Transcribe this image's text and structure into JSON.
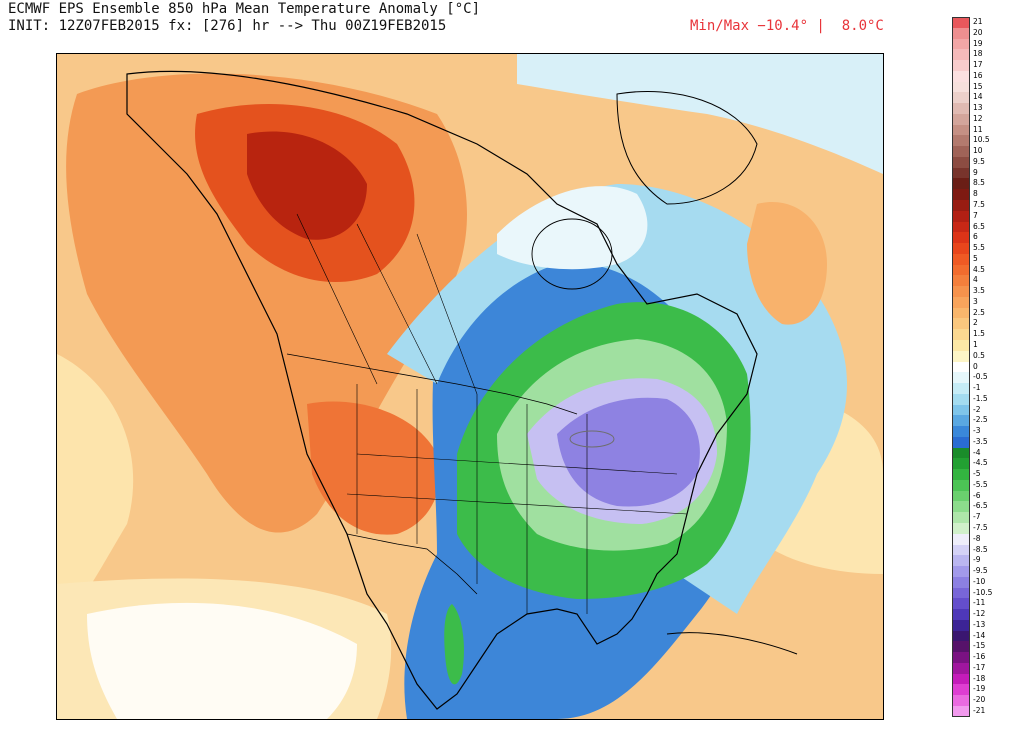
{
  "header": {
    "title_line1": "ECMWF EPS Ensemble 850 hPa Mean Temperature Anomaly [°C]",
    "title_line2": "INIT: 12Z07FEB2015 fx: [276] hr --> Thu 00Z19FEB2015",
    "min_max": "Min/Max −10.4° |  8.0°C"
  },
  "colorbar": {
    "unit": "°C",
    "levels": [
      {
        "label": "21",
        "color": "#e8585c"
      },
      {
        "label": "20",
        "color": "#ee8f90"
      },
      {
        "label": "19",
        "color": "#f2a6a6"
      },
      {
        "label": "18",
        "color": "#f5baba"
      },
      {
        "label": "17",
        "color": "#f8cdcd"
      },
      {
        "label": "16",
        "color": "#fbe0e0"
      },
      {
        "label": "15",
        "color": "#f6e0dc"
      },
      {
        "label": "14",
        "color": "#ecd0ca"
      },
      {
        "label": "13",
        "color": "#e0bab2"
      },
      {
        "label": "12",
        "color": "#d3a59b"
      },
      {
        "label": "11",
        "color": "#c59084"
      },
      {
        "label": "10.5",
        "color": "#b37a6e"
      },
      {
        "label": "10",
        "color": "#a06358"
      },
      {
        "label": "9.5",
        "color": "#8c4c42"
      },
      {
        "label": "9",
        "color": "#78342c"
      },
      {
        "label": "8.5",
        "color": "#6a1e16"
      },
      {
        "label": "8",
        "color": "#7e1a12"
      },
      {
        "label": "7.5",
        "color": "#981c12"
      },
      {
        "label": "7",
        "color": "#b22014"
      },
      {
        "label": "6.5",
        "color": "#c82816"
      },
      {
        "label": "6",
        "color": "#dc3418"
      },
      {
        "label": "5.5",
        "color": "#e8461c"
      },
      {
        "label": "5",
        "color": "#ef5a24"
      },
      {
        "label": "4.5",
        "color": "#f26c2e"
      },
      {
        "label": "4",
        "color": "#f47f3c"
      },
      {
        "label": "3.5",
        "color": "#f6924c"
      },
      {
        "label": "3",
        "color": "#f8a45c"
      },
      {
        "label": "2.5",
        "color": "#f9b66c"
      },
      {
        "label": "2",
        "color": "#fac77e"
      },
      {
        "label": "1.5",
        "color": "#fbd891"
      },
      {
        "label": "1",
        "color": "#fce8a6"
      },
      {
        "label": "0.5",
        "color": "#fdf5c6"
      },
      {
        "label": "0",
        "color": "#ffffff"
      },
      {
        "label": "-0.5",
        "color": "#e6f7fb"
      },
      {
        "label": "-1",
        "color": "#c6ecf6"
      },
      {
        "label": "-1.5",
        "color": "#a4dcf0"
      },
      {
        "label": "-2",
        "color": "#7fc5ea"
      },
      {
        "label": "-2.5",
        "color": "#5aa8e2"
      },
      {
        "label": "-3",
        "color": "#3a88da"
      },
      {
        "label": "-3.5",
        "color": "#2a6cd2"
      },
      {
        "label": "-4",
        "color": "#1a8c2a"
      },
      {
        "label": "-4.5",
        "color": "#22a032"
      },
      {
        "label": "-5",
        "color": "#33b440"
      },
      {
        "label": "-5.5",
        "color": "#4cc455"
      },
      {
        "label": "-6",
        "color": "#6ad06e"
      },
      {
        "label": "-6.5",
        "color": "#8cdc8c"
      },
      {
        "label": "-7",
        "color": "#aee6aa"
      },
      {
        "label": "-7.5",
        "color": "#d0f0ca"
      },
      {
        "label": "-8",
        "color": "#eeeefa"
      },
      {
        "label": "-8.5",
        "color": "#d4d2f6"
      },
      {
        "label": "-9",
        "color": "#bab6f0"
      },
      {
        "label": "-9.5",
        "color": "#a29aea"
      },
      {
        "label": "-10",
        "color": "#8c80e2"
      },
      {
        "label": "-10.5",
        "color": "#7866d8"
      },
      {
        "label": "-11",
        "color": "#644ecc"
      },
      {
        "label": "-12",
        "color": "#4e38b8"
      },
      {
        "label": "-13",
        "color": "#3c2496"
      },
      {
        "label": "-14",
        "color": "#3a1670"
      },
      {
        "label": "-15",
        "color": "#56126a"
      },
      {
        "label": "-16",
        "color": "#7a1282"
      },
      {
        "label": "-17",
        "color": "#a0169e"
      },
      {
        "label": "-18",
        "color": "#c41cba"
      },
      {
        "label": "-19",
        "color": "#de3ed2"
      },
      {
        "label": "-20",
        "color": "#ea6ae0"
      },
      {
        "label": "-21",
        "color": "#f29aee"
      }
    ]
  },
  "map_colors": {
    "border": "#000000",
    "lakes": "#6e6e6e"
  }
}
